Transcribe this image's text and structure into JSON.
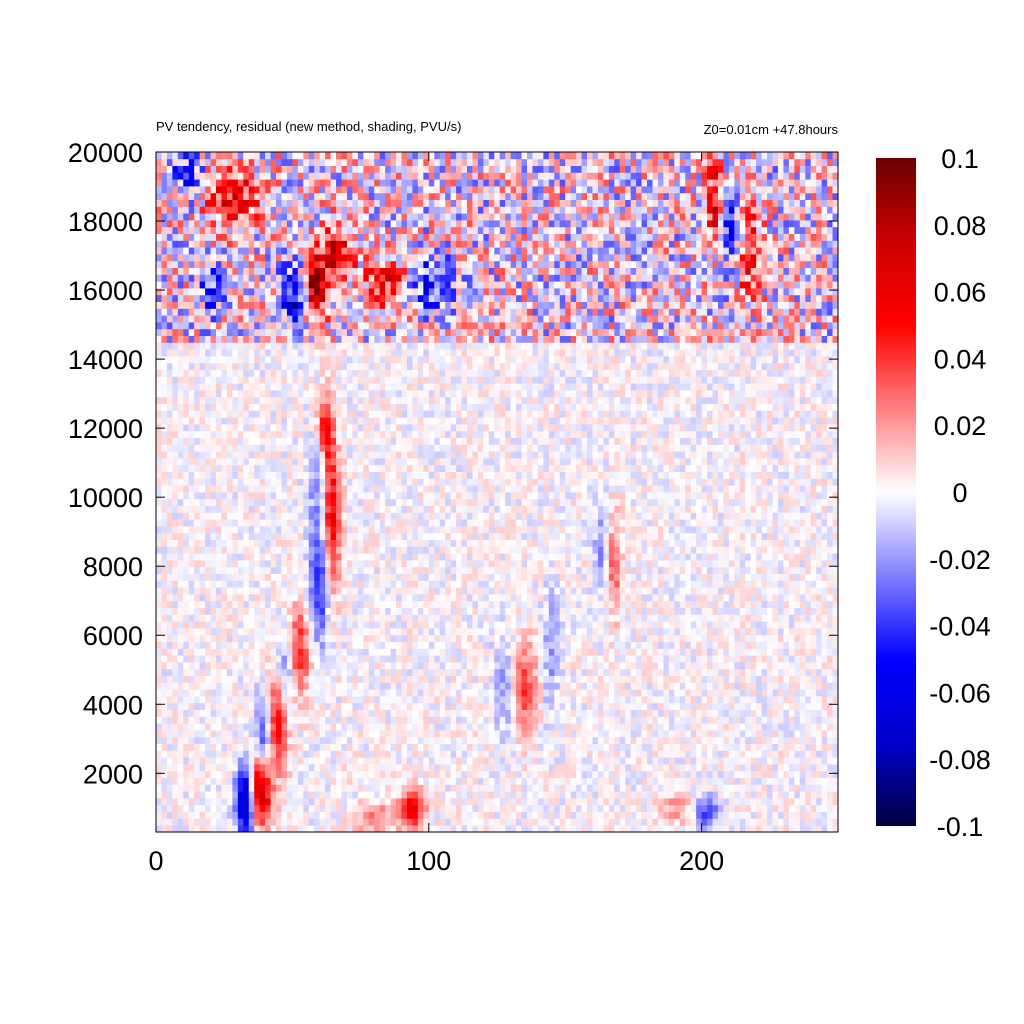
{
  "chart_data": {
    "type": "heatmap",
    "title": "PV tendency, residual (new method, shading, PVU/s)",
    "annotation": "Z0=0.01cm   +47.8hours",
    "xlabel": "",
    "ylabel": "",
    "xlim": [
      0,
      250
    ],
    "ylim": [
      300,
      20000
    ],
    "x_ticks": [
      "0",
      "100",
      "200"
    ],
    "y_ticks": [
      "2000",
      "4000",
      "6000",
      "8000",
      "10000",
      "12000",
      "14000",
      "16000",
      "18000",
      "20000"
    ],
    "x_tick_values": [
      0,
      100,
      200
    ],
    "y_tick_values": [
      2000,
      4000,
      6000,
      8000,
      10000,
      12000,
      14000,
      16000,
      18000,
      20000
    ],
    "colorbar": {
      "range": [
        -0.1,
        0.1
      ],
      "ticks": [
        "0.1",
        "0.08",
        "0.06",
        "0.04",
        "0.02",
        "0",
        "-0.02",
        "-0.04",
        "-0.06",
        "-0.08",
        "-0.1"
      ],
      "tick_values": [
        0.1,
        0.08,
        0.06,
        0.04,
        0.02,
        0,
        -0.02,
        -0.04,
        -0.06,
        -0.08,
        -0.1
      ],
      "colors": [
        "#000040",
        "#0000cc",
        "#0000ff",
        "#8080ff",
        "#ffffff",
        "#ff8080",
        "#ff0000",
        "#cc0000",
        "#6b0000"
      ]
    },
    "grid": false,
    "features": [
      {
        "x": 38,
        "y": 1500,
        "amp": 0.09,
        "sx": 3,
        "sy": 700
      },
      {
        "x": 33,
        "y": 1200,
        "amp": -0.09,
        "sx": 2.5,
        "sy": 700
      },
      {
        "x": 44,
        "y": 3500,
        "amp": 0.06,
        "sx": 3,
        "sy": 1000
      },
      {
        "x": 40,
        "y": 3000,
        "amp": -0.05,
        "sx": 2.5,
        "sy": 1000
      },
      {
        "x": 52,
        "y": 5500,
        "amp": 0.05,
        "sx": 3,
        "sy": 900
      },
      {
        "x": 48,
        "y": 5000,
        "amp": -0.04,
        "sx": 2.5,
        "sy": 900
      },
      {
        "x": 60,
        "y": 7500,
        "amp": -0.05,
        "sx": 2.5,
        "sy": 1200
      },
      {
        "x": 64,
        "y": 9500,
        "amp": 0.06,
        "sx": 2.5,
        "sy": 1500
      },
      {
        "x": 60,
        "y": 10500,
        "amp": -0.03,
        "sx": 2.5,
        "sy": 1200
      },
      {
        "x": 62,
        "y": 12000,
        "amp": 0.05,
        "sx": 2,
        "sy": 700
      },
      {
        "x": 58,
        "y": 16000,
        "amp": 0.1,
        "sx": 3,
        "sy": 700
      },
      {
        "x": 52,
        "y": 15800,
        "amp": -0.07,
        "sx": 4,
        "sy": 600
      },
      {
        "x": 66,
        "y": 17000,
        "amp": 0.07,
        "sx": 4,
        "sy": 600
      },
      {
        "x": 85,
        "y": 16200,
        "amp": 0.05,
        "sx": 6,
        "sy": 500
      },
      {
        "x": 100,
        "y": 16200,
        "amp": -0.05,
        "sx": 6,
        "sy": 500
      },
      {
        "x": 20,
        "y": 16000,
        "amp": -0.04,
        "sx": 3,
        "sy": 500
      },
      {
        "x": 28,
        "y": 18700,
        "amp": 0.05,
        "sx": 8,
        "sy": 600
      },
      {
        "x": 12,
        "y": 19300,
        "amp": -0.04,
        "sx": 4,
        "sy": 500
      },
      {
        "x": 205,
        "y": 18500,
        "amp": 0.07,
        "sx": 2.5,
        "sy": 800
      },
      {
        "x": 210,
        "y": 18000,
        "amp": -0.06,
        "sx": 2.5,
        "sy": 800
      },
      {
        "x": 218,
        "y": 17000,
        "amp": 0.05,
        "sx": 3,
        "sy": 900
      },
      {
        "x": 135,
        "y": 4500,
        "amp": 0.04,
        "sx": 3,
        "sy": 900
      },
      {
        "x": 128,
        "y": 4500,
        "amp": -0.02,
        "sx": 3,
        "sy": 900
      },
      {
        "x": 145,
        "y": 5500,
        "amp": -0.02,
        "sx": 2,
        "sy": 1200
      },
      {
        "x": 168,
        "y": 8000,
        "amp": 0.03,
        "sx": 2,
        "sy": 1000
      },
      {
        "x": 163,
        "y": 8500,
        "amp": -0.02,
        "sx": 2,
        "sy": 1000
      },
      {
        "x": 94,
        "y": 1000,
        "amp": 0.06,
        "sx": 3,
        "sy": 400
      },
      {
        "x": 80,
        "y": 700,
        "amp": 0.03,
        "sx": 5,
        "sy": 300
      },
      {
        "x": 202,
        "y": 900,
        "amp": -0.04,
        "sx": 3,
        "sy": 300
      },
      {
        "x": 190,
        "y": 1000,
        "amp": 0.02,
        "sx": 5,
        "sy": 300
      }
    ]
  }
}
